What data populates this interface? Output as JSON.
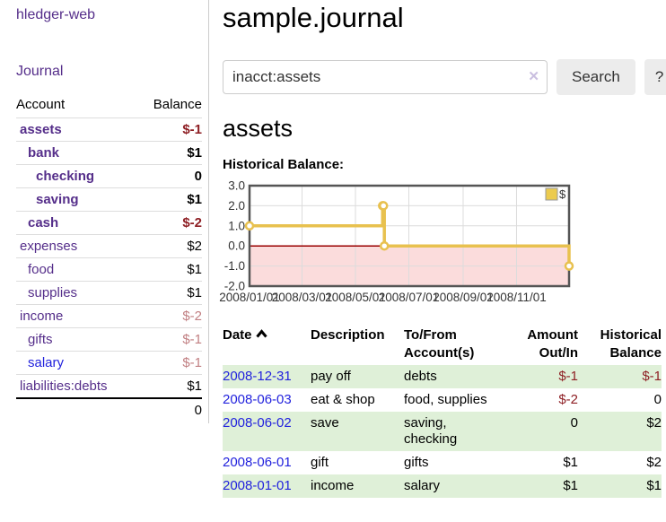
{
  "sidebar": {
    "brand": "hledger-web",
    "journal_link": "Journal",
    "accounts_table": {
      "headers": {
        "account": "Account",
        "balance": "Balance"
      },
      "rows": [
        {
          "account": "assets",
          "depth": 1,
          "active": true,
          "balance": "$-1"
        },
        {
          "account": "bank",
          "depth": 2,
          "active": true,
          "balance": "$1"
        },
        {
          "account": "checking",
          "depth": 3,
          "active": true,
          "balance": "0"
        },
        {
          "account": "saving",
          "depth": 3,
          "active": true,
          "balance": "$1"
        },
        {
          "account": "cash",
          "depth": 2,
          "active": true,
          "balance": "$-2"
        },
        {
          "account": "expenses",
          "depth": 1,
          "active": false,
          "balance": "$2"
        },
        {
          "account": "food",
          "depth": 2,
          "active": false,
          "balance": "$1"
        },
        {
          "account": "supplies",
          "depth": 2,
          "active": false,
          "balance": "$1"
        },
        {
          "account": "income",
          "depth": 1,
          "active": false,
          "balance": "$-2"
        },
        {
          "account": "gifts",
          "depth": 2,
          "active": false,
          "balance": "$-1"
        },
        {
          "account": "salary",
          "depth": 2,
          "active": false,
          "balance": "$-1",
          "unvisited": true
        },
        {
          "account": "liabilities:debts",
          "depth": 1,
          "active": false,
          "balance": "$1"
        }
      ],
      "total": "0"
    }
  },
  "header": {
    "title": "sample.journal"
  },
  "search": {
    "query": "inacct:assets",
    "clear_icon": "✕",
    "button_label": "Search",
    "help_label": "?"
  },
  "account_page": {
    "heading": "assets",
    "chart_label": "Historical Balance:"
  },
  "chart_data": {
    "type": "line",
    "step": true,
    "title": "Historical Balance",
    "series": [
      {
        "name": "$",
        "points": [
          [
            "2008-01-01",
            1
          ],
          [
            "2008-06-01",
            2
          ],
          [
            "2008-06-02",
            2
          ],
          [
            "2008-06-03",
            0
          ],
          [
            "2008-12-31",
            -1
          ]
        ]
      }
    ],
    "xlim": [
      "2008-01-01",
      "2008-12-31"
    ],
    "ylim": [
      -2,
      3
    ],
    "y_ticks": [
      {
        "v": 3,
        "label": "3.0"
      },
      {
        "v": 2,
        "label": "2.0"
      },
      {
        "v": 1,
        "label": "1.0"
      },
      {
        "v": 0,
        "label": "0.0"
      },
      {
        "v": -1,
        "label": "-1.0"
      },
      {
        "v": -2,
        "label": "-2.0"
      }
    ],
    "x_ticks": [
      {
        "d": "2008-01-01",
        "label": "2008/01/01"
      },
      {
        "d": "2008-03-01",
        "label": "2008/03/01"
      },
      {
        "d": "2008-05-01",
        "label": "2008/05/01"
      },
      {
        "d": "2008-07-01",
        "label": "2008/07/01"
      },
      {
        "d": "2008-09-01",
        "label": "2008/09/01"
      },
      {
        "d": "2008-11-01",
        "label": "2008/11/01"
      }
    ],
    "legend": {
      "position": "top-right",
      "label": "$"
    },
    "grid": true,
    "colors": {
      "line": "#e8c14f",
      "marker_fill": "#ffffff",
      "legend_fill": "#eccb4e",
      "legend_border": "#999999",
      "negative_region": "#fbdcdc",
      "zero_line": "#990000",
      "plot_border": "#555555",
      "gridline": "#dcdcdc",
      "tick_text": "#333333"
    }
  },
  "transactions": {
    "columns": {
      "date": "Date",
      "description": "Description",
      "accounts": "To/From Account(s)",
      "amount": "Amount Out/In",
      "balance": "Historical Balance"
    },
    "sort_icon": "chevron-up",
    "rows": [
      {
        "date": "2008-12-31",
        "description": "pay off",
        "accounts": "debts",
        "amount": "$-1",
        "balance": "$-1"
      },
      {
        "date": "2008-06-03",
        "description": "eat & shop",
        "accounts": "food, supplies",
        "amount": "$-2",
        "balance": "0"
      },
      {
        "date": "2008-06-02",
        "description": "save",
        "accounts": "saving, checking",
        "amount": "0",
        "balance": "$2"
      },
      {
        "date": "2008-06-01",
        "description": "gift",
        "accounts": "gifts",
        "amount": "$1",
        "balance": "$2"
      },
      {
        "date": "2008-01-01",
        "description": "income",
        "accounts": "salary",
        "amount": "$1",
        "balance": "$1"
      }
    ]
  }
}
